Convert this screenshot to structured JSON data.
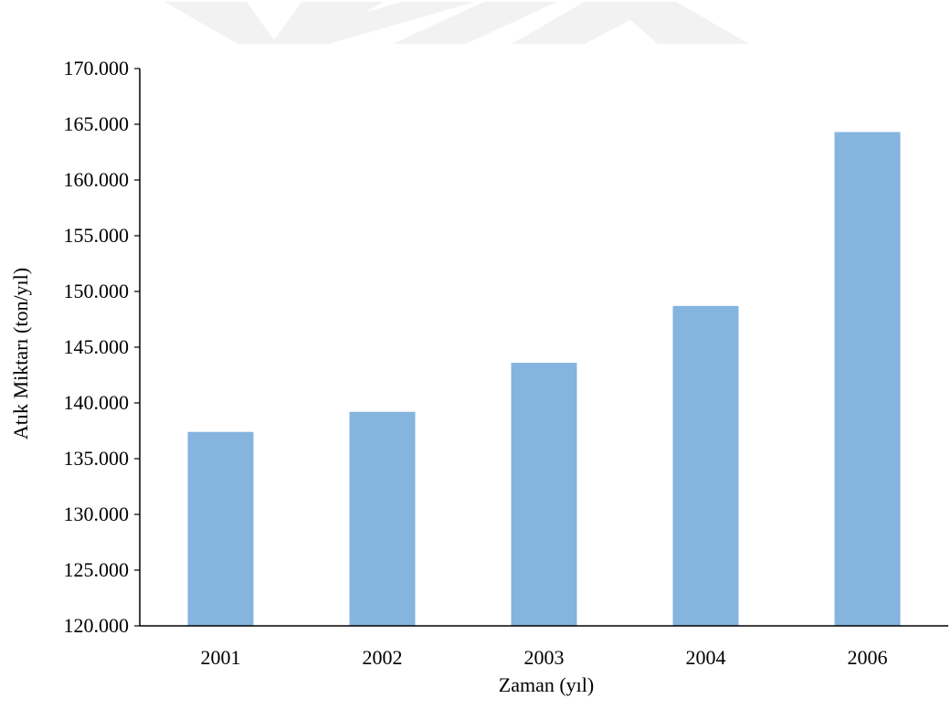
{
  "chart_data": {
    "type": "bar",
    "title": "",
    "xlabel": "Zaman (yıl)",
    "ylabel": "Atık Miktarı (ton/yıl)",
    "categories": [
      "2001",
      "2002",
      "2003",
      "2004",
      "2006"
    ],
    "values": [
      137400,
      139200,
      143600,
      148700,
      164300
    ],
    "ylim": [
      120000,
      170000
    ],
    "yticks": [
      120000,
      125000,
      130000,
      135000,
      140000,
      145000,
      150000,
      155000,
      160000,
      165000,
      170000
    ],
    "ytick_labels": [
      "120.000",
      "125.000",
      "130.000",
      "135.000",
      "140.000",
      "145.000",
      "150.000",
      "155.000",
      "160.000",
      "165.000",
      "170.000"
    ],
    "grid": false,
    "legend": "none",
    "colors": {
      "bar": "#85b4df",
      "axis": "#000000",
      "watermark": "#f0f0f0"
    }
  }
}
